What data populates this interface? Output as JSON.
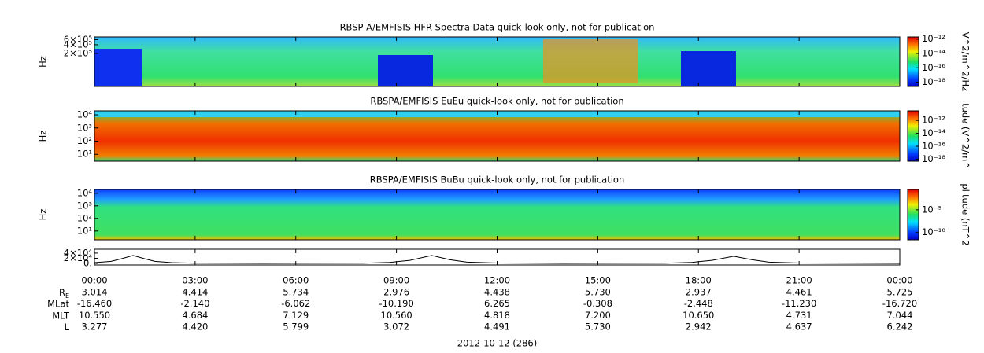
{
  "chart_data": [
    {
      "type": "spectrogram",
      "title": "RBSP-A/EMFISIS  HFR Spectra Data quick-look only, not for publication",
      "y_label": "Hz",
      "log_y": true,
      "ylim": [
        14000,
        750000
      ],
      "yticks": [
        {
          "value": 200000,
          "label": "2×10⁵"
        },
        {
          "value": 400000,
          "label": "4×10⁵"
        },
        {
          "value": 600000,
          "label": "6×10⁵"
        }
      ],
      "colorbar": {
        "label": "V^2/m^2/Hz",
        "log": true,
        "lim": [
          2.5e-19,
          2e-12
        ],
        "ticks": [
          {
            "value": 1e-12,
            "label": "10⁻¹²"
          },
          {
            "value": 1e-14,
            "label": "10⁻¹⁴"
          },
          {
            "value": 1e-16,
            "label": "10⁻¹⁶"
          },
          {
            "value": 1e-18,
            "label": "10⁻¹⁸"
          }
        ]
      }
    },
    {
      "type": "spectrogram",
      "title": "RBSPA/EMFISIS  EuEu quick-look only, not for publication",
      "y_label": "Hz",
      "log_y": true,
      "ylim": [
        3,
        20000
      ],
      "yticks": [
        {
          "value": 10,
          "label": "10¹"
        },
        {
          "value": 100,
          "label": "10²"
        },
        {
          "value": 1000,
          "label": "10³"
        },
        {
          "value": 10000,
          "label": "10⁴"
        }
      ],
      "colorbar": {
        "label": "tude (V^2/m^",
        "log": true,
        "lim": [
          5e-19,
          3e-11
        ],
        "ticks": [
          {
            "value": 1e-12,
            "label": "10⁻¹²"
          },
          {
            "value": 1e-14,
            "label": "10⁻¹⁴"
          },
          {
            "value": 1e-16,
            "label": "10⁻¹⁶"
          },
          {
            "value": 1e-18,
            "label": "10⁻¹⁸"
          }
        ]
      }
    },
    {
      "type": "spectrogram",
      "title": "RBSPA/EMFISIS  BuBu quick-look only, not for publication",
      "y_label": "Hz",
      "log_y": true,
      "ylim": [
        2,
        20000
      ],
      "yticks": [
        {
          "value": 10,
          "label": "10¹"
        },
        {
          "value": 100,
          "label": "10²"
        },
        {
          "value": 1000,
          "label": "10³"
        },
        {
          "value": 10000,
          "label": "10⁴"
        }
      ],
      "colorbar": {
        "label": "plitude (nT^2",
        "log": true,
        "lim": [
          2.5e-12,
          0.3
        ],
        "ticks": [
          {
            "value": 1e-05,
            "label": "10⁻⁵"
          },
          {
            "value": 1e-10,
            "label": "10⁻¹⁰"
          }
        ]
      }
    },
    {
      "type": "line",
      "log_y": false,
      "ylim": [
        -6000,
        55000
      ],
      "color": "#000000",
      "yticks": [
        {
          "value": 0,
          "label": "0."
        },
        {
          "value": 20000,
          "label": "2×10⁴"
        },
        {
          "value": 40000,
          "label": "4×10⁴"
        }
      ],
      "x": [
        0,
        0.5,
        0.8,
        1.15,
        1.5,
        1.8,
        2.3,
        3,
        5,
        8,
        8.8,
        9.4,
        10.05,
        10.6,
        11.1,
        12,
        14,
        17,
        17.8,
        18.4,
        19.05,
        19.6,
        20.1,
        21,
        24
      ],
      "values": [
        3000,
        8000,
        18000,
        31000,
        18000,
        8000,
        3000,
        1000,
        0,
        1000,
        4000,
        12000,
        31000,
        14000,
        5000,
        1500,
        0,
        1000,
        4000,
        12000,
        28000,
        14000,
        5000,
        1500,
        200
      ]
    }
  ],
  "time_axis": {
    "xlim": [
      0,
      24
    ],
    "xticks": [
      {
        "value": 0,
        "label": "00:00"
      },
      {
        "value": 3,
        "label": "03:00"
      },
      {
        "value": 6,
        "label": "06:00"
      },
      {
        "value": 9,
        "label": "09:00"
      },
      {
        "value": 12,
        "label": "12:00"
      },
      {
        "value": 15,
        "label": "15:00"
      },
      {
        "value": 18,
        "label": "18:00"
      },
      {
        "value": 21,
        "label": "21:00"
      },
      {
        "value": 24,
        "label": "00:00"
      }
    ]
  },
  "ephemeris": {
    "rows": [
      {
        "label": "R",
        "label_sub": "E",
        "values": [
          "3.014",
          "4.414",
          "5.734",
          "2.976",
          "4.438",
          "5.730",
          "2.937",
          "4.461",
          "5.725"
        ]
      },
      {
        "label": "MLat",
        "values": [
          "-16.460",
          "-2.140",
          "-6.062",
          "-10.190",
          "6.265",
          "-0.308",
          "-2.448",
          "-11.230",
          "-16.720"
        ]
      },
      {
        "label": "MLT",
        "values": [
          "10.550",
          "4.684",
          "7.129",
          "10.560",
          "4.818",
          "7.200",
          "10.650",
          "4.731",
          "7.044"
        ]
      },
      {
        "label": "L",
        "values": [
          "3.277",
          "4.420",
          "5.799",
          "3.072",
          "4.491",
          "5.730",
          "2.942",
          "4.637",
          "6.242"
        ]
      }
    ]
  },
  "date_label": "2012-10-12 (286)"
}
